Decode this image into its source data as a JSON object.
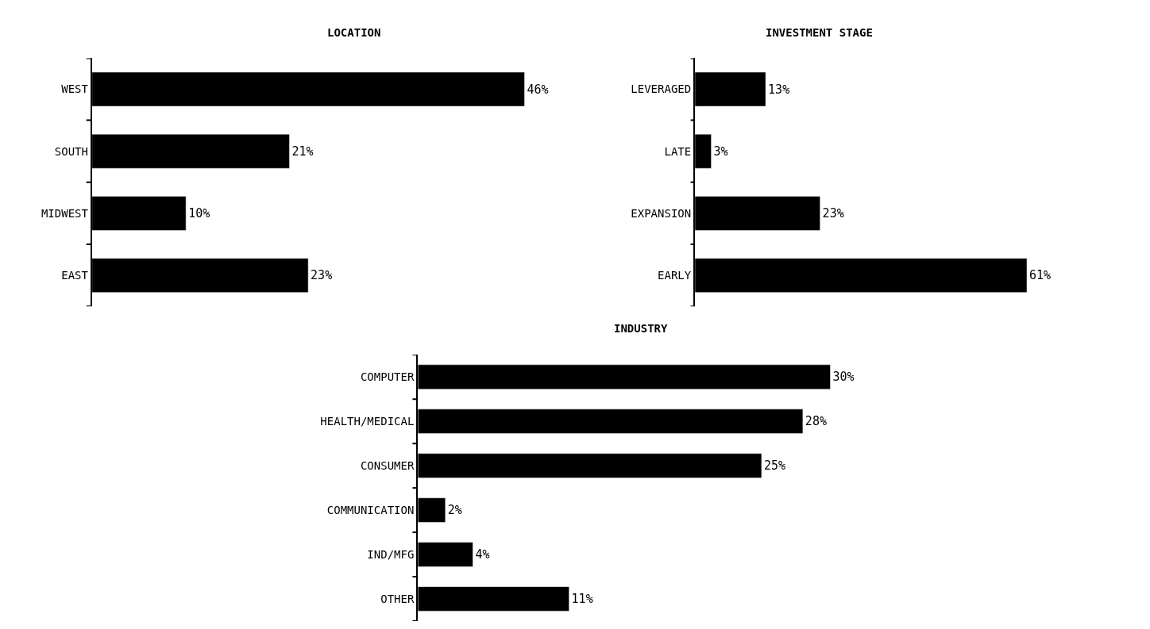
{
  "chart_data": [
    {
      "type": "bar",
      "orientation": "horizontal",
      "title": "LOCATION",
      "categories": [
        "WEST",
        "SOUTH",
        "MIDWEST",
        "EAST"
      ],
      "values": [
        46,
        21,
        10,
        23
      ],
      "value_labels": [
        "46%",
        "21%",
        "10%",
        "23%"
      ],
      "color": "#000000"
    },
    {
      "type": "bar",
      "orientation": "horizontal",
      "title": "INVESTMENT STAGE",
      "categories": [
        "LEVERAGED",
        "LATE",
        "EXPANSION",
        "EARLY"
      ],
      "values": [
        13,
        3,
        23,
        61
      ],
      "value_labels": [
        "13%",
        "3%",
        "23%",
        "61%"
      ],
      "color": "#000000"
    },
    {
      "type": "bar",
      "orientation": "horizontal",
      "title": "INDUSTRY",
      "categories": [
        "COMPUTER",
        "HEALTH/MEDICAL",
        "CONSUMER",
        "COMMUNICATION",
        "IND/MFG",
        "OTHER"
      ],
      "values": [
        30,
        28,
        25,
        2,
        4,
        11
      ],
      "value_labels": [
        "30%",
        "28%",
        "25%",
        "2%",
        "4%",
        "11%"
      ],
      "color": "#000000"
    }
  ]
}
